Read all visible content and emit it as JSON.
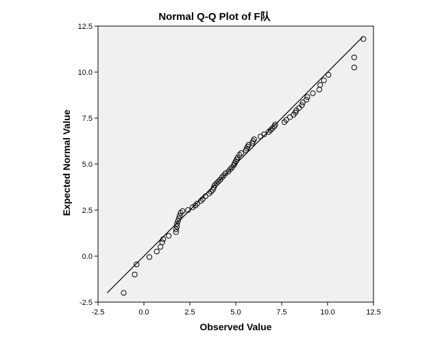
{
  "chart_data": {
    "type": "scatter",
    "title": "Normal Q-Q Plot of F队",
    "xlabel": "Observed Value",
    "ylabel": "Expected Normal Value",
    "xlim": [
      -2.5,
      12.5
    ],
    "ylim": [
      -2.5,
      12.5
    ],
    "xticks": [
      "-2.5",
      "0.0",
      "2.5",
      "5.0",
      "7.5",
      "10.0",
      "12.5"
    ],
    "yticks": [
      "-2.5",
      "0.0",
      "2.5",
      "5.0",
      "7.5",
      "10.0",
      "12.5"
    ],
    "grid": false,
    "background_color": "#f0f0f0",
    "reference_line": {
      "x": [
        -2.0,
        11.9
      ],
      "y": [
        -2.0,
        11.9
      ]
    },
    "points": [
      [
        -1.1,
        -2.0
      ],
      [
        -0.5,
        -1.0
      ],
      [
        -0.4,
        -0.45
      ],
      [
        0.3,
        -0.05
      ],
      [
        0.7,
        0.25
      ],
      [
        0.9,
        0.5
      ],
      [
        1.0,
        0.75
      ],
      [
        1.05,
        0.92
      ],
      [
        1.35,
        1.1
      ],
      [
        1.75,
        1.3
      ],
      [
        1.75,
        1.45
      ],
      [
        1.8,
        1.6
      ],
      [
        1.8,
        1.75
      ],
      [
        1.85,
        1.9
      ],
      [
        1.9,
        2.05
      ],
      [
        1.95,
        2.2
      ],
      [
        2.0,
        2.35
      ],
      [
        2.1,
        2.45
      ],
      [
        2.4,
        2.5
      ],
      [
        2.65,
        2.65
      ],
      [
        2.8,
        2.75
      ],
      [
        2.9,
        2.85
      ],
      [
        3.1,
        3.0
      ],
      [
        3.2,
        3.1
      ],
      [
        3.35,
        3.25
      ],
      [
        3.55,
        3.4
      ],
      [
        3.65,
        3.5
      ],
      [
        3.75,
        3.6
      ],
      [
        3.8,
        3.72
      ],
      [
        3.85,
        3.85
      ],
      [
        3.95,
        3.95
      ],
      [
        4.05,
        4.05
      ],
      [
        4.15,
        4.15
      ],
      [
        4.25,
        4.28
      ],
      [
        4.35,
        4.38
      ],
      [
        4.45,
        4.5
      ],
      [
        4.6,
        4.6
      ],
      [
        4.7,
        4.72
      ],
      [
        4.8,
        4.82
      ],
      [
        4.9,
        4.95
      ],
      [
        4.95,
        5.05
      ],
      [
        5.0,
        5.15
      ],
      [
        5.05,
        5.25
      ],
      [
        5.1,
        5.35
      ],
      [
        5.2,
        5.5
      ],
      [
        5.3,
        5.6
      ],
      [
        5.55,
        5.75
      ],
      [
        5.6,
        5.85
      ],
      [
        5.65,
        5.95
      ],
      [
        5.7,
        6.05
      ],
      [
        5.9,
        6.15
      ],
      [
        5.95,
        6.25
      ],
      [
        6.0,
        6.35
      ],
      [
        6.35,
        6.5
      ],
      [
        6.55,
        6.62
      ],
      [
        6.8,
        6.75
      ],
      [
        6.9,
        6.85
      ],
      [
        7.0,
        6.95
      ],
      [
        7.1,
        7.05
      ],
      [
        7.15,
        7.15
      ],
      [
        7.65,
        7.28
      ],
      [
        7.75,
        7.4
      ],
      [
        7.95,
        7.55
      ],
      [
        8.15,
        7.68
      ],
      [
        8.25,
        7.8
      ],
      [
        8.3,
        7.92
      ],
      [
        8.45,
        8.05
      ],
      [
        8.6,
        8.2
      ],
      [
        8.65,
        8.35
      ],
      [
        8.85,
        8.5
      ],
      [
        8.9,
        8.65
      ],
      [
        9.2,
        8.85
      ],
      [
        9.55,
        9.05
      ],
      [
        9.6,
        9.3
      ],
      [
        9.8,
        9.55
      ],
      [
        10.05,
        9.85
      ],
      [
        11.45,
        10.25
      ],
      [
        11.45,
        10.8
      ],
      [
        11.95,
        11.8
      ]
    ]
  }
}
